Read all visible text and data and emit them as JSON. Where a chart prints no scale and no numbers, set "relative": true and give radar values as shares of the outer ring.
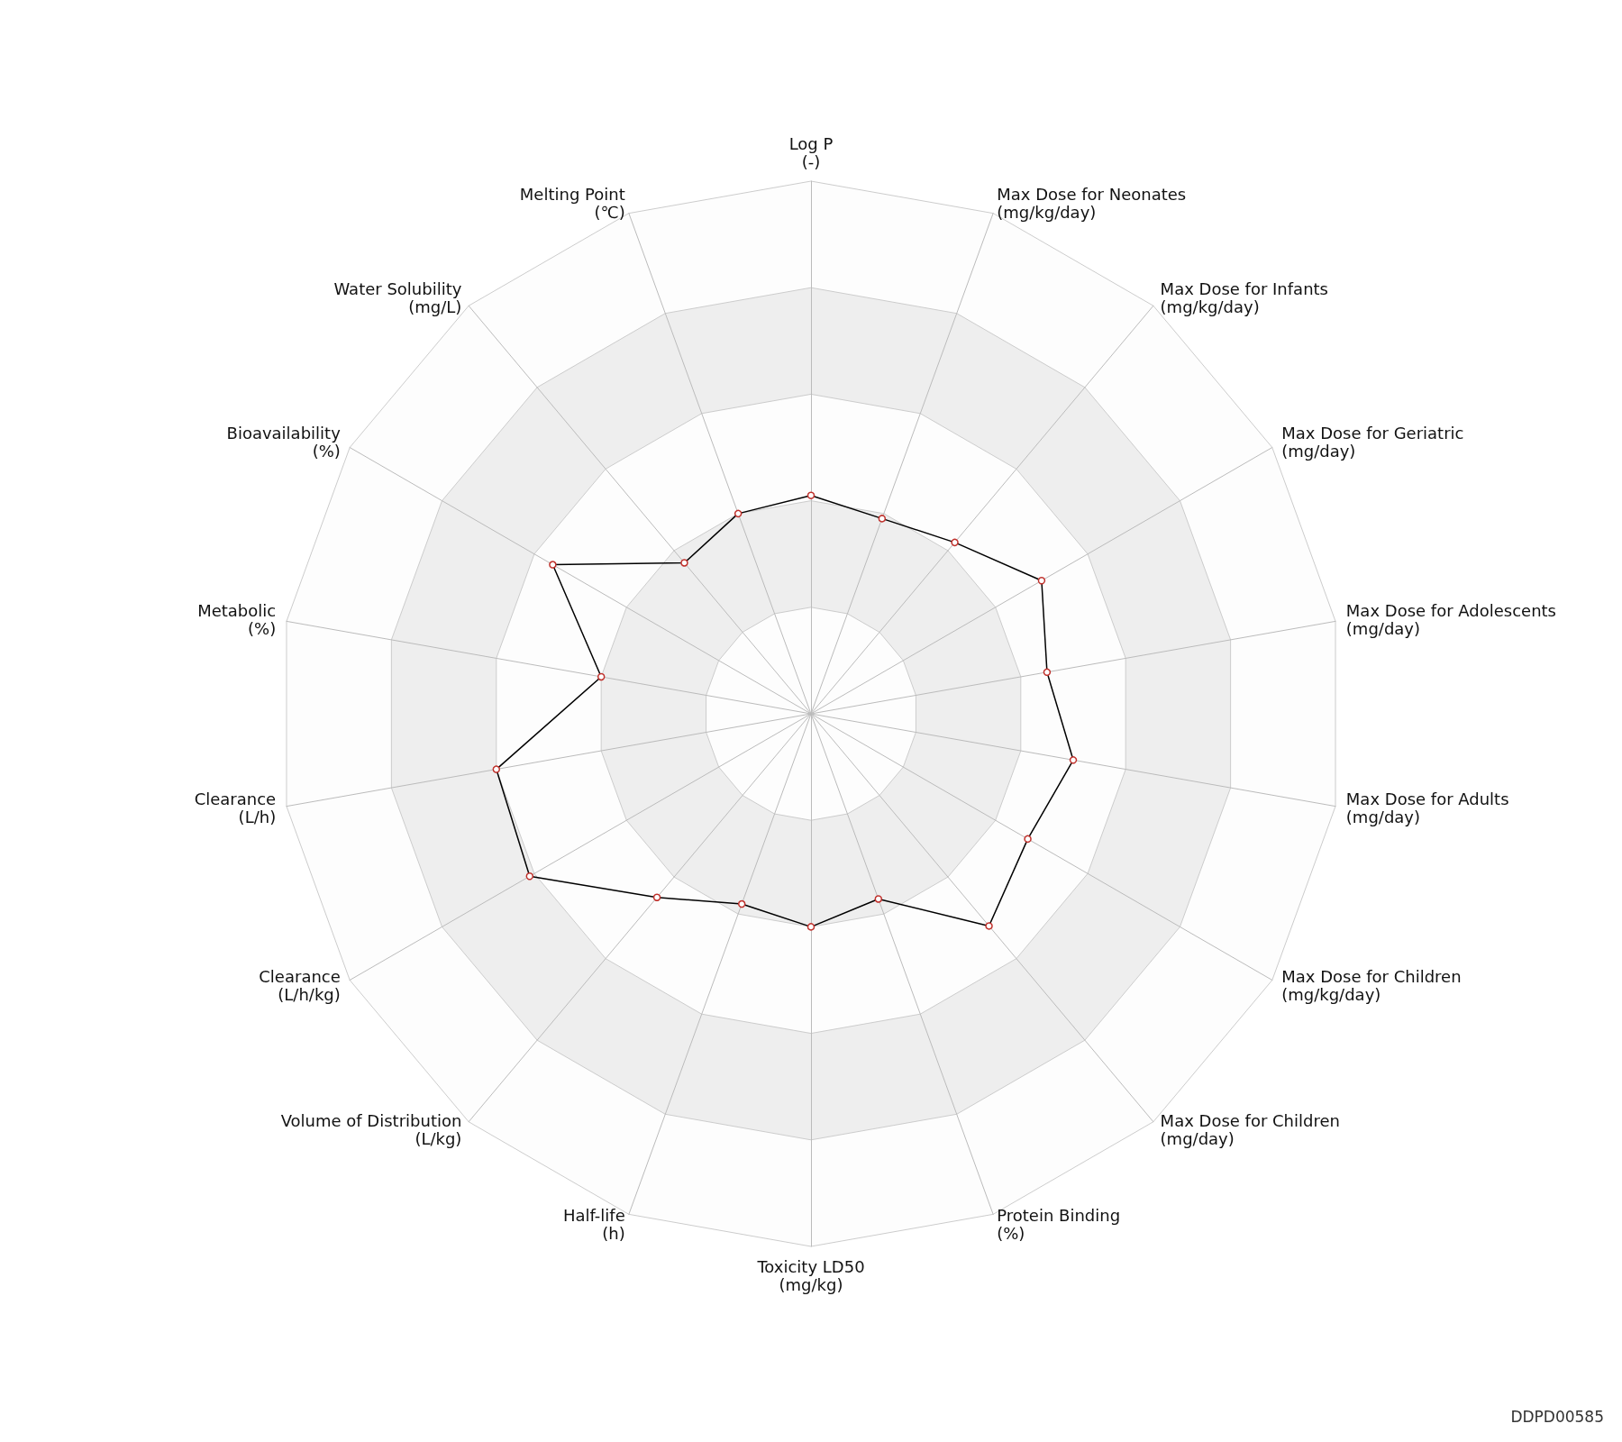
{
  "chart_data": {
    "type": "radar",
    "relative": true,
    "marker": "circle",
    "line_style": "solid",
    "categories": [
      "Log P\n(-)",
      "Max Dose for Neonates\n(mg/kg/day)",
      "Max Dose for Infants\n(mg/kg/day)",
      "Max Dose for Geriatric\n(mg/day)",
      "Max Dose for Adolescents\n(mg/day)",
      "Max Dose for Adults\n(mg/day)",
      "Max Dose for Children\n(mg/kg/day)",
      "Max Dose for Children\n(mg/day)",
      "Protein Binding\n(%)",
      "Toxicity LD50\n(mg/kg)",
      "Half-life\n(h)",
      "Volume of Distribution\n(L/kg)",
      "Clearance\n(L/h/kg)",
      "Clearance\n(L/h)",
      "Metabolic\n(%)",
      "Bioavailability\n(%)",
      "Water Solubility\n(mg/L)",
      "Melting Point\n(℃)"
    ],
    "series": [
      {
        "color": "#000000",
        "values": [
          0.41,
          0.39,
          0.42,
          0.5,
          0.45,
          0.5,
          0.47,
          0.52,
          0.37,
          0.4,
          0.38,
          0.45,
          0.61,
          0.6,
          0.4,
          0.56,
          0.37,
          0.4
        ]
      }
    ],
    "annotations": [
      "DDPD00585"
    ]
  }
}
